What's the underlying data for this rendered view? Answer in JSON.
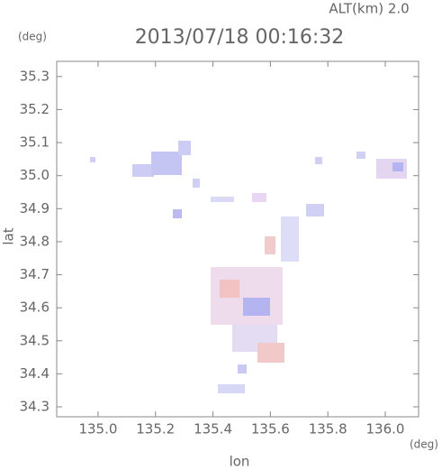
{
  "chart_data": {
    "type": "map",
    "title": "2013/07/18 00:16:32",
    "subtitle": "ALT(km) 2.0",
    "y_unit": "(deg)",
    "x_unit": "(deg)",
    "xlabel": "lon",
    "ylabel": "lat",
    "xlim": [
      134.856,
      136.116
    ],
    "ylim": [
      34.27,
      35.346
    ],
    "xticks": [
      {
        "value": 135.0,
        "label": "135.0"
      },
      135.2,
      135.4,
      135.6,
      135.8,
      {
        "value": 136.0,
        "label": "136.0"
      }
    ],
    "yticks": [
      34.3,
      34.4,
      34.5,
      34.6,
      34.7,
      34.8,
      34.9,
      {
        "value": 35.0,
        "label": "35.0"
      },
      35.1,
      35.2,
      35.3
    ]
  }
}
